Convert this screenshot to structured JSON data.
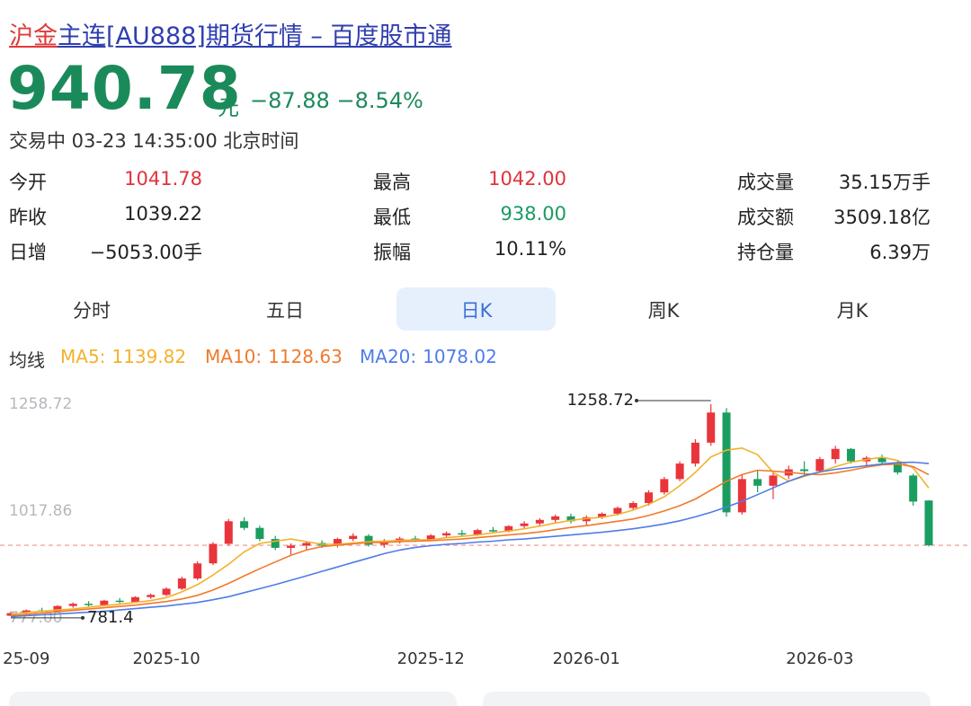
{
  "header": {
    "title_red": "沪金",
    "title_blue": "主连[AU888]期货行情 – 百度股市通",
    "price": "940.78",
    "unit": "元",
    "change": "−87.88",
    "change_pct": "−8.54%",
    "status": "交易中 03-23 14:35:00 北京时间"
  },
  "stats": [
    {
      "label": "今开",
      "value": "1041.78",
      "color": "#e0323c"
    },
    {
      "label": "最高",
      "value": "1042.00",
      "color": "#e0323c"
    },
    {
      "label": "成交量",
      "value": "35.15万手",
      "color": "#222"
    },
    {
      "label": "昨收",
      "value": "1039.22",
      "color": "#222"
    },
    {
      "label": "最低",
      "value": "938.00",
      "color": "#1b9a63"
    },
    {
      "label": "成交额",
      "value": "3509.18亿",
      "color": "#222"
    },
    {
      "label": "日增",
      "value": "−5053.00手",
      "color": "#222"
    },
    {
      "label": "振幅",
      "value": "10.11%",
      "color": "#222"
    },
    {
      "label": "持仓量",
      "value": "6.39万",
      "color": "#222"
    }
  ],
  "tabs": {
    "items": [
      "分时",
      "五日",
      "日K",
      "周K",
      "月K"
    ],
    "selected": 2
  },
  "ma_title": "均线",
  "chart_data": {
    "type": "candlestick",
    "up_color": "#e8353b",
    "down_color": "#1a9e5f",
    "ylim": [
      777,
      1258.72
    ],
    "yticks": [
      {
        "value": 777,
        "label": "777.00"
      },
      1017.86,
      1258.72
    ],
    "categories": [
      null,
      "25-09",
      null,
      null,
      null,
      null,
      null,
      null,
      null,
      null,
      "2025-10",
      null,
      null,
      null,
      null,
      null,
      null,
      null,
      null,
      null,
      null,
      null,
      null,
      null,
      null,
      null,
      null,
      "2025-12",
      null,
      null,
      null,
      null,
      null,
      null,
      null,
      null,
      null,
      "2026-01",
      null,
      null,
      null,
      null,
      null,
      null,
      null,
      null,
      null,
      null,
      null,
      null,
      null,
      null,
      "2026-03",
      null,
      null,
      null,
      null,
      null,
      null,
      null
    ],
    "open": [
      782,
      788,
      794,
      792,
      804,
      809,
      806,
      816,
      813,
      824,
      829,
      843,
      866,
      900,
      944,
      995,
      980,
      955,
      935,
      940,
      946,
      940,
      955,
      962,
      942,
      950,
      956,
      952,
      963,
      968,
      965,
      975,
      972,
      984,
      990,
      998,
      1006,
      995,
      1004,
      1012,
      1025,
      1036,
      1060,
      1090,
      1125,
      1172,
      1240,
      1015,
      1090,
      1075,
      1098,
      1112,
      1108,
      1135,
      1158,
      1130,
      1138,
      1128,
      1098,
      1041.78
    ],
    "high": [
      790,
      796,
      800,
      806,
      812,
      815,
      818,
      822,
      826,
      832,
      846,
      870,
      905,
      948,
      1000,
      1004,
      985,
      962,
      945,
      950,
      952,
      958,
      968,
      966,
      955,
      960,
      962,
      966,
      972,
      975,
      978,
      982,
      986,
      995,
      1002,
      1010,
      1012,
      1008,
      1015,
      1028,
      1040,
      1065,
      1095,
      1130,
      1180,
      1258.72,
      1250,
      1100,
      1110,
      1105,
      1120,
      1130,
      1140,
      1165,
      1160,
      1142,
      1145,
      1132,
      1102,
      1042
    ],
    "low": [
      781.4,
      785,
      790,
      790,
      800,
      803,
      804,
      810,
      811,
      820,
      826,
      840,
      862,
      896,
      940,
      975,
      950,
      930,
      920,
      930,
      935,
      936,
      950,
      938,
      935,
      945,
      948,
      950,
      958,
      960,
      962,
      968,
      970,
      978,
      985,
      990,
      990,
      985,
      1000,
      1008,
      1020,
      1030,
      1055,
      1085,
      1118,
      1165,
      1005,
      1010,
      1060,
      1045,
      1090,
      1100,
      1105,
      1125,
      1125,
      1120,
      1125,
      1100,
      1030,
      938
    ],
    "close": [
      788,
      794,
      792,
      804,
      809,
      806,
      816,
      813,
      824,
      829,
      843,
      866,
      900,
      944,
      995,
      980,
      955,
      935,
      940,
      946,
      940,
      955,
      962,
      942,
      950,
      956,
      952,
      963,
      968,
      965,
      975,
      972,
      984,
      990,
      998,
      1006,
      995,
      1004,
      1012,
      1025,
      1036,
      1060,
      1090,
      1125,
      1172,
      1240,
      1015,
      1090,
      1075,
      1098,
      1112,
      1108,
      1135,
      1158,
      1130,
      1138,
      1128,
      1105,
      1039.22,
      940.78
    ],
    "reference_color": "#f2a3a3",
    "series": [
      {
        "name": "MA5:",
        "legend_value": 1139.82,
        "color": "#f3b12c",
        "values": [
          785,
          789,
          792,
          795,
          797,
          801,
          805,
          808,
          812,
          816,
          823,
          836,
          852,
          874,
          898,
          926,
          945,
          950,
          955,
          949,
          943,
          943,
          946,
          949,
          950,
          952,
          953,
          953,
          958,
          961,
          964,
          969,
          973,
          978,
          984,
          991,
          997,
          1001,
          1004,
          1010,
          1020,
          1033,
          1050,
          1075,
          1105,
          1140,
          1155,
          1160,
          1145,
          1105,
          1085,
          1096,
          1106,
          1118,
          1128,
          1134,
          1139,
          1132,
          1115,
          1070
        ]
      },
      {
        "name": "MA10:",
        "legend_value": 1128.63,
        "color": "#f07a2c",
        "values": [
          782,
          785,
          788,
          791,
          794,
          797,
          800,
          803,
          806,
          810,
          814,
          820,
          828,
          840,
          855,
          872,
          888,
          903,
          918,
          930,
          938,
          941,
          944,
          947,
          947,
          949,
          950,
          951,
          953,
          955,
          958,
          961,
          964,
          967,
          971,
          976,
          981,
          985,
          990,
          995,
          1000,
          1008,
          1018,
          1030,
          1045,
          1065,
          1085,
          1100,
          1110,
          1108,
          1105,
          1102,
          1100,
          1104,
          1110,
          1117,
          1122,
          1124,
          1118,
          1100
        ]
      },
      {
        "name": "MA20:",
        "legend_value": 1078.02,
        "color": "#4f7ce8",
        "values": [
          780,
          782,
          784,
          786,
          788,
          790,
          792,
          795,
          798,
          801,
          804,
          808,
          812,
          818,
          825,
          834,
          843,
          852,
          862,
          872,
          882,
          892,
          902,
          912,
          922,
          930,
          936,
          940,
          943,
          945,
          948,
          950,
          953,
          955,
          958,
          961,
          964,
          967,
          970,
          974,
          978,
          983,
          989,
          996,
          1005,
          1015,
          1027,
          1040,
          1055,
          1070,
          1085,
          1098,
          1106,
          1112,
          1116,
          1120,
          1124,
          1127,
          1128,
          1125
        ]
      }
    ]
  }
}
